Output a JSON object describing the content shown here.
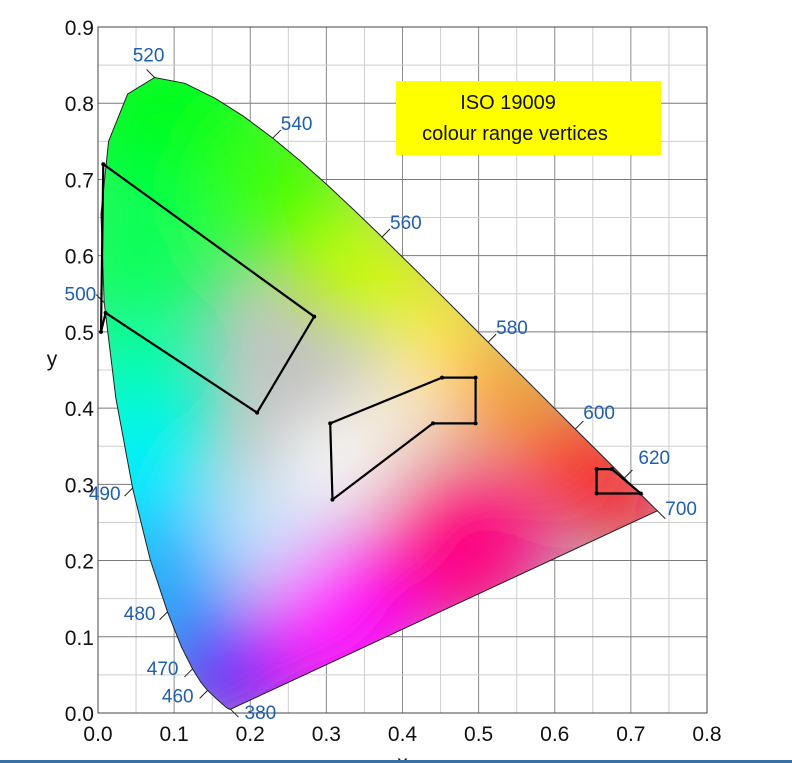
{
  "chart_data": {
    "type": "scatter",
    "title": "",
    "xlabel": "x",
    "ylabel": "y",
    "xlim": [
      0.0,
      0.8
    ],
    "ylim": [
      0.0,
      0.9
    ],
    "x_ticks": [
      0.0,
      0.1,
      0.2,
      0.3,
      0.4,
      0.5,
      0.6,
      0.7,
      0.8
    ],
    "x_tick_labels": [
      "0.0",
      "0.1",
      "0.2",
      "0.3",
      "0.4",
      "0.5",
      "0.6",
      "0.7",
      "0.8"
    ],
    "y_ticks": [
      0.0,
      0.1,
      0.2,
      0.3,
      0.4,
      0.5,
      0.6,
      0.7,
      0.8,
      0.9
    ],
    "y_tick_labels": [
      "0.0",
      "0.1",
      "0.2",
      "0.3",
      "0.4",
      "0.5",
      "0.6",
      "0.7",
      "0.8",
      "0.9"
    ],
    "grid": true,
    "annotation": {
      "lines": [
        "ISO  19009",
        "colour range vertices"
      ],
      "color": "#ffff00"
    },
    "spectral_locus": [
      {
        "nm": 380,
        "x": 0.1741,
        "y": 0.005
      },
      {
        "nm": 410,
        "x": 0.1726,
        "y": 0.0048
      },
      {
        "nm": 430,
        "x": 0.1689,
        "y": 0.0069
      },
      {
        "nm": 450,
        "x": 0.1566,
        "y": 0.0177
      },
      {
        "nm": 460,
        "x": 0.144,
        "y": 0.0297
      },
      {
        "nm": 465,
        "x": 0.1355,
        "y": 0.0399
      },
      {
        "nm": 470,
        "x": 0.1241,
        "y": 0.0578
      },
      {
        "nm": 475,
        "x": 0.1096,
        "y": 0.0868
      },
      {
        "nm": 480,
        "x": 0.0913,
        "y": 0.1327
      },
      {
        "nm": 485,
        "x": 0.0687,
        "y": 0.2007
      },
      {
        "nm": 490,
        "x": 0.0454,
        "y": 0.295
      },
      {
        "nm": 495,
        "x": 0.0235,
        "y": 0.4127
      },
      {
        "nm": 500,
        "x": 0.0082,
        "y": 0.5384
      },
      {
        "nm": 505,
        "x": 0.0039,
        "y": 0.6548
      },
      {
        "nm": 510,
        "x": 0.0139,
        "y": 0.7502
      },
      {
        "nm": 515,
        "x": 0.0389,
        "y": 0.812
      },
      {
        "nm": 520,
        "x": 0.0743,
        "y": 0.8338
      },
      {
        "nm": 525,
        "x": 0.1142,
        "y": 0.8262
      },
      {
        "nm": 530,
        "x": 0.1547,
        "y": 0.8059
      },
      {
        "nm": 535,
        "x": 0.1929,
        "y": 0.7816
      },
      {
        "nm": 540,
        "x": 0.2296,
        "y": 0.7543
      },
      {
        "nm": 545,
        "x": 0.2658,
        "y": 0.7243
      },
      {
        "nm": 550,
        "x": 0.3016,
        "y": 0.6923
      },
      {
        "nm": 555,
        "x": 0.3373,
        "y": 0.6589
      },
      {
        "nm": 560,
        "x": 0.3731,
        "y": 0.6245
      },
      {
        "nm": 565,
        "x": 0.4087,
        "y": 0.5896
      },
      {
        "nm": 570,
        "x": 0.4441,
        "y": 0.5547
      },
      {
        "nm": 575,
        "x": 0.4788,
        "y": 0.5202
      },
      {
        "nm": 580,
        "x": 0.5125,
        "y": 0.4866
      },
      {
        "nm": 585,
        "x": 0.5448,
        "y": 0.4544
      },
      {
        "nm": 590,
        "x": 0.5752,
        "y": 0.4242
      },
      {
        "nm": 595,
        "x": 0.6029,
        "y": 0.3965
      },
      {
        "nm": 600,
        "x": 0.627,
        "y": 0.3725
      },
      {
        "nm": 610,
        "x": 0.6658,
        "y": 0.334
      },
      {
        "nm": 620,
        "x": 0.6915,
        "y": 0.3083
      },
      {
        "nm": 640,
        "x": 0.719,
        "y": 0.2809
      },
      {
        "nm": 660,
        "x": 0.73,
        "y": 0.27
      },
      {
        "nm": 700,
        "x": 0.7347,
        "y": 0.2653
      }
    ],
    "wavelength_labels": [
      {
        "text": "520",
        "nm": 520
      },
      {
        "text": "540",
        "nm": 540
      },
      {
        "text": "560",
        "nm": 560
      },
      {
        "text": "580",
        "nm": 580
      },
      {
        "text": "600",
        "nm": 600
      },
      {
        "text": "620",
        "nm": 620
      },
      {
        "text": "700",
        "nm": 700
      },
      {
        "text": "500",
        "nm": 500
      },
      {
        "text": "490",
        "nm": 490
      },
      {
        "text": "480",
        "nm": 480
      },
      {
        "text": "470",
        "nm": 470
      },
      {
        "text": "460",
        "nm": 460
      },
      {
        "text": "380",
        "nm": 380
      }
    ],
    "series": [
      {
        "kind": "colour-range-green",
        "vertices": [
          [
            0.007,
            0.72
          ],
          [
            0.284,
            0.52
          ],
          [
            0.209,
            0.394
          ],
          [
            0.01,
            0.525
          ],
          [
            0.004,
            0.5
          ]
        ]
      },
      {
        "kind": "colour-range-yellow",
        "vertices": [
          [
            0.305,
            0.38
          ],
          [
            0.452,
            0.44
          ],
          [
            0.496,
            0.44
          ],
          [
            0.496,
            0.38
          ],
          [
            0.44,
            0.38
          ],
          [
            0.308,
            0.28
          ]
        ]
      },
      {
        "kind": "colour-range-red",
        "vertices": [
          [
            0.655,
            0.32
          ],
          [
            0.675,
            0.32
          ],
          [
            0.713,
            0.288
          ],
          [
            0.655,
            0.288
          ]
        ]
      }
    ]
  }
}
